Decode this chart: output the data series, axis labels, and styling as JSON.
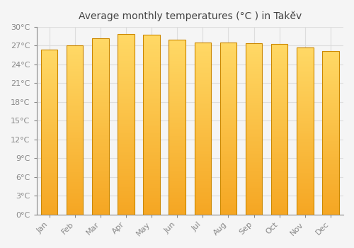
{
  "title": "Average monthly temperatures (°C ) in Takĕv",
  "months": [
    "Jan",
    "Feb",
    "Mar",
    "Apr",
    "May",
    "Jun",
    "Jul",
    "Aug",
    "Sep",
    "Oct",
    "Nov",
    "Dec"
  ],
  "temperatures": [
    26.3,
    27.0,
    28.1,
    28.8,
    28.7,
    27.9,
    27.5,
    27.5,
    27.3,
    27.2,
    26.7,
    26.1
  ],
  "bar_color_top": "#FFD966",
  "bar_color_bottom": "#F5A623",
  "bar_edge_color": "#CC8800",
  "background_color": "#f5f5f5",
  "plot_bg_color": "#f5f5f5",
  "grid_color": "#dddddd",
  "ylim": [
    0,
    30
  ],
  "yticks": [
    0,
    3,
    6,
    9,
    12,
    15,
    18,
    21,
    24,
    27,
    30
  ],
  "title_fontsize": 10,
  "tick_fontsize": 8,
  "ylabel_suffix": "°C",
  "bar_width": 0.65
}
